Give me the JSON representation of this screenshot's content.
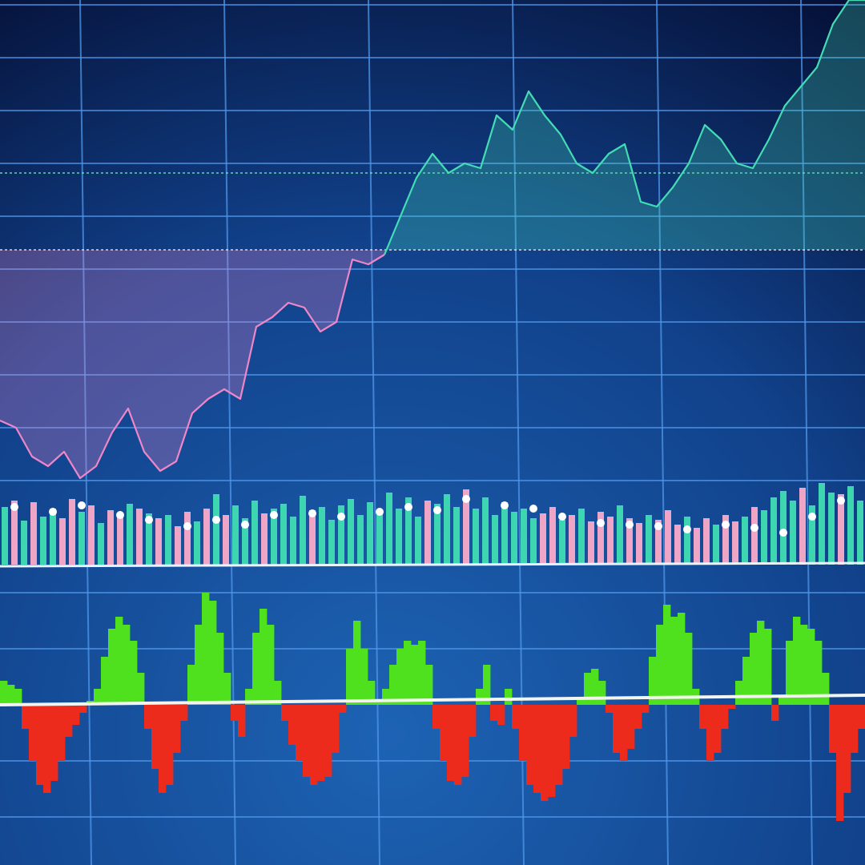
{
  "chart_data": [
    {
      "type": "line",
      "x": [
        0,
        1,
        2,
        3,
        4,
        5,
        6,
        7,
        8,
        9,
        10,
        11,
        12,
        13,
        14,
        15,
        16,
        17,
        18,
        19,
        20,
        21,
        22,
        23,
        24,
        25,
        26,
        27,
        28,
        29,
        30,
        31,
        32,
        33,
        34,
        35,
        36,
        37,
        38,
        39,
        40,
        41,
        42,
        43,
        44,
        45,
        46,
        47,
        48,
        49,
        50,
        51,
        52,
        53,
        54
      ],
      "xlim": [
        0,
        54
      ],
      "xticks": [
        5,
        14,
        23,
        32,
        41,
        50
      ],
      "ylim": [
        0,
        100
      ],
      "yticks": [
        0,
        11,
        22,
        33,
        44,
        55,
        66,
        77,
        88,
        99
      ],
      "grid": true,
      "reference_lines": [
        48,
        64
      ],
      "series": [
        {
          "color": "#ee86c8",
          "values": [
            12.5,
            11,
            5,
            3,
            6,
            0.5,
            3,
            10,
            15,
            6,
            2,
            4,
            14,
            17,
            19,
            17,
            32,
            34,
            37,
            36,
            31,
            33,
            46,
            45,
            47,
            null,
            null,
            null,
            null,
            null,
            null,
            null,
            null,
            null,
            null,
            null,
            null,
            null,
            null,
            null,
            null,
            null,
            null,
            null,
            null,
            null,
            null,
            null,
            null,
            null,
            null,
            null,
            null,
            null,
            null
          ]
        },
        {
          "color": "#44dcb4",
          "values": [
            null,
            null,
            null,
            null,
            null,
            null,
            null,
            null,
            null,
            null,
            null,
            null,
            null,
            null,
            null,
            null,
            null,
            null,
            null,
            null,
            null,
            null,
            null,
            null,
            47,
            55,
            63,
            68,
            64,
            66,
            65,
            76,
            73,
            81,
            76,
            72,
            66,
            64,
            68,
            70,
            58,
            57,
            61,
            66,
            74,
            71,
            66,
            65,
            71,
            78,
            82,
            86,
            95,
            100,
            100
          ]
        }
      ]
    },
    {
      "type": "bar",
      "ylim": [
        0,
        120
      ],
      "values": [
        72,
        80,
        55,
        78,
        60,
        70,
        58,
        82,
        66,
        74,
        52,
        68,
        60,
        76,
        70,
        64,
        58,
        62,
        48,
        66,
        54,
        70,
        88,
        62,
        74,
        58,
        80,
        64,
        70,
        76,
        60,
        86,
        68,
        72,
        56,
        74,
        82,
        62,
        78,
        66,
        90,
        70,
        84,
        60,
        80,
        76,
        88,
        72,
        94,
        70,
        84,
        62,
        78,
        66,
        70,
        58,
        64,
        72,
        56,
        62,
        70,
        54,
        66,
        60,
        74,
        58,
        52,
        62,
        56,
        68,
        50,
        60,
        46,
        58,
        50,
        62,
        54,
        60,
        72,
        68,
        84,
        92,
        80,
        96,
        74,
        102,
        90,
        88,
        98,
        80
      ],
      "colors": [
        "#3ed6b0",
        "#efa5c6",
        "#3ed6b0",
        "#efa5c6",
        "#3ed6b0",
        "#3ed6b0",
        "#efa5c6",
        "#efa5c6",
        "#3ed6b0",
        "#efa5c6",
        "#3ed6b0",
        "#efa5c6",
        "#efa5c6",
        "#3ed6b0",
        "#efa5c6",
        "#3ed6b0",
        "#efa5c6",
        "#3ed6b0",
        "#efa5c6",
        "#efa5c6",
        "#3ed6b0",
        "#efa5c6",
        "#3ed6b0",
        "#efa5c6",
        "#3ed6b0",
        "#3ed6b0",
        "#3ed6b0",
        "#efa5c6",
        "#3ed6b0",
        "#3ed6b0",
        "#3ed6b0",
        "#3ed6b0",
        "#efa5c6",
        "#3ed6b0",
        "#3ed6b0",
        "#3ed6b0",
        "#3ed6b0",
        "#3ed6b0",
        "#3ed6b0",
        "#3ed6b0",
        "#3ed6b0",
        "#3ed6b0",
        "#3ed6b0",
        "#3ed6b0",
        "#efa5c6",
        "#3ed6b0",
        "#3ed6b0",
        "#3ed6b0",
        "#efa5c6",
        "#3ed6b0",
        "#3ed6b0",
        "#3ed6b0",
        "#3ed6b0",
        "#3ed6b0",
        "#3ed6b0",
        "#3ed6b0",
        "#efa5c6",
        "#efa5c6",
        "#3ed6b0",
        "#efa5c6",
        "#3ed6b0",
        "#efa5c6",
        "#efa5c6",
        "#efa5c6",
        "#3ed6b0",
        "#efa5c6",
        "#efa5c6",
        "#3ed6b0",
        "#efa5c6",
        "#efa5c6",
        "#efa5c6",
        "#3ed6b0",
        "#efa5c6",
        "#efa5c6",
        "#3ed6b0",
        "#efa5c6",
        "#efa5c6",
        "#3ed6b0",
        "#efa5c6",
        "#3ed6b0",
        "#3ed6b0",
        "#3ed6b0",
        "#3ed6b0",
        "#efa5c6",
        "#3ed6b0",
        "#3ed6b0",
        "#3ed6b0",
        "#efa5c6",
        "#3ed6b0",
        "#3ed6b0"
      ],
      "dots": {
        "color": "#ffffff",
        "x": [
          1,
          5,
          8,
          12,
          15,
          19,
          22,
          25,
          28,
          32,
          35,
          39,
          42,
          45,
          48,
          52,
          55,
          58,
          62,
          65,
          68,
          71,
          75,
          78,
          81,
          84,
          87
        ],
        "values": [
          72,
          66,
          74,
          62,
          56,
          48,
          56,
          50,
          62,
          64,
          60,
          66,
          72,
          68,
          82,
          74,
          70,
          60,
          52,
          50,
          48,
          44,
          50,
          46,
          40,
          60,
          80
        ]
      }
    },
    {
      "type": "bar",
      "ylim": [
        -150,
        150
      ],
      "yticks": [
        -140,
        -70,
        70,
        140
      ],
      "grid": true,
      "positive_color": "#4fe01e",
      "negative_color": "#ec2b1c",
      "values": [
        30,
        25,
        20,
        -30,
        -70,
        -100,
        -110,
        -95,
        -70,
        -40,
        -25,
        -10,
        5,
        20,
        60,
        95,
        110,
        100,
        80,
        40,
        -30,
        -80,
        -110,
        -100,
        -60,
        -20,
        50,
        100,
        140,
        130,
        90,
        40,
        -20,
        -40,
        20,
        90,
        120,
        100,
        30,
        -20,
        -50,
        -70,
        -90,
        -100,
        -95,
        -90,
        -60,
        -10,
        70,
        105,
        70,
        30,
        5,
        20,
        50,
        70,
        80,
        75,
        80,
        50,
        -30,
        -70,
        -95,
        -100,
        -90,
        -40,
        20,
        50,
        -20,
        -25,
        20,
        -30,
        -70,
        -100,
        -110,
        -120,
        -115,
        -100,
        -80,
        -40,
        10,
        40,
        45,
        30,
        -10,
        -60,
        -70,
        -55,
        -30,
        -10,
        60,
        100,
        125,
        110,
        115,
        90,
        20,
        -30,
        -70,
        -60,
        -30,
        -5,
        30,
        60,
        90,
        105,
        95,
        -20,
        10,
        80,
        110,
        100,
        95,
        80,
        40,
        -60,
        -145,
        -110,
        -60,
        -30
      ]
    }
  ]
}
